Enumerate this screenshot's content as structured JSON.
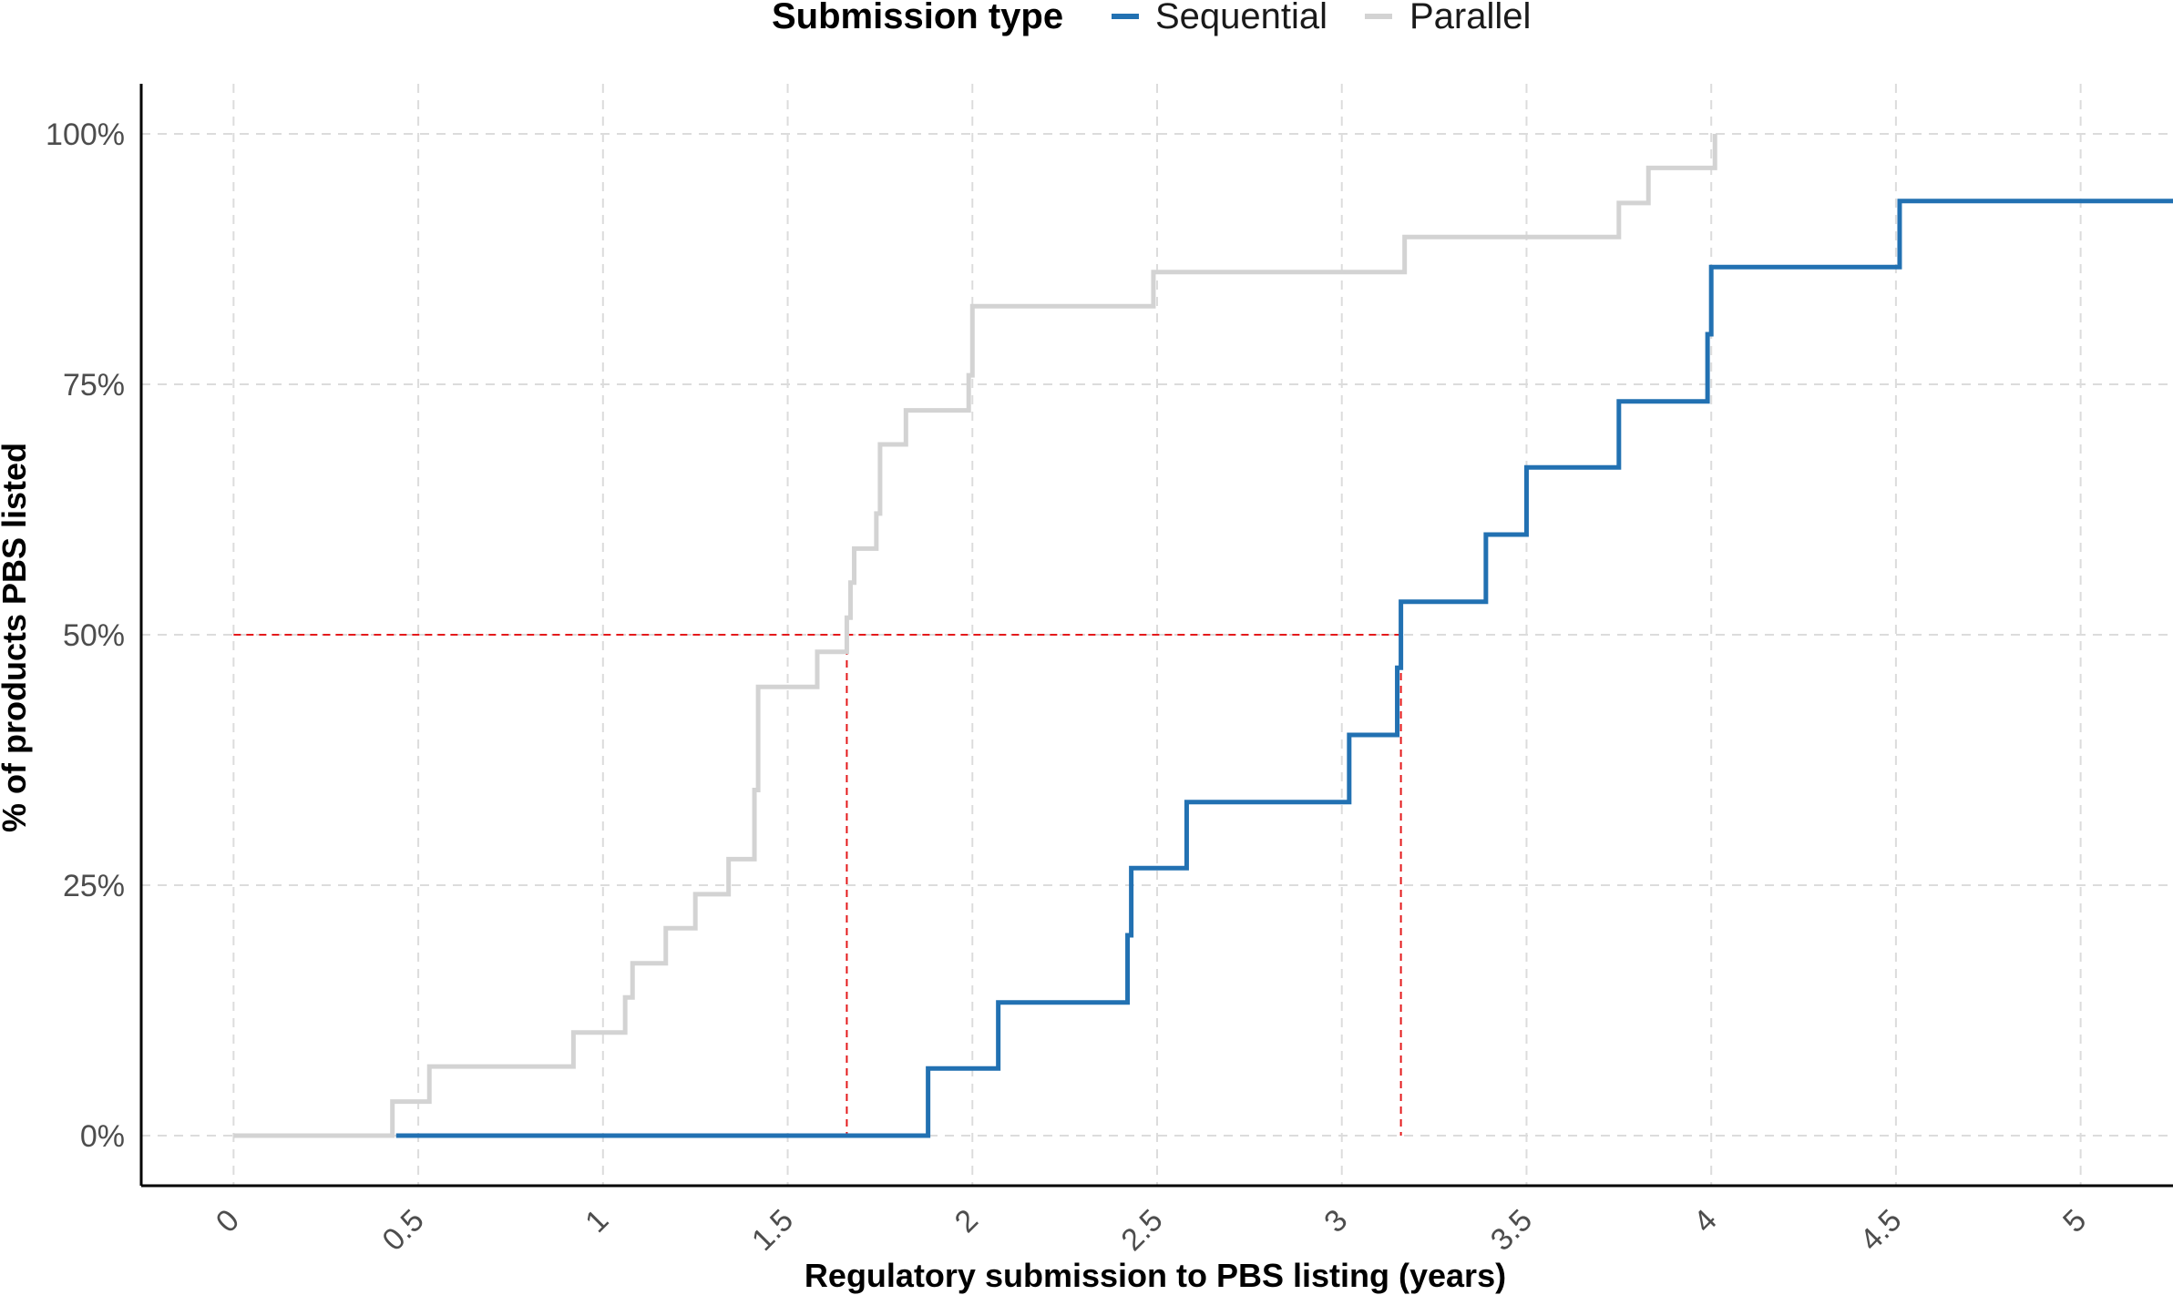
{
  "chart_data": {
    "type": "line",
    "step": true,
    "xlabel": "Regulatory submission to PBS listing (years)",
    "ylabel": "% of products PBS listed",
    "xlim": [
      -0.25,
      5.25
    ],
    "ylim": [
      -0.05,
      1.05
    ],
    "x_ticks": [
      0,
      0.5,
      1,
      1.5,
      2,
      2.5,
      3,
      3.5,
      4,
      4.5,
      5
    ],
    "x_tick_labels": [
      "0",
      "0.5",
      "1",
      "1.5",
      "2",
      "2.5",
      "3",
      "3.5",
      "4",
      "4.5",
      "5"
    ],
    "y_ticks": [
      0,
      0.25,
      0.5,
      0.75,
      1
    ],
    "y_tick_labels": [
      "0%",
      "25%",
      "50%",
      "75%",
      "100%"
    ],
    "grid": true,
    "legend": {
      "title": "Submission type",
      "position": "top"
    },
    "series": [
      {
        "name": "Sequential",
        "color": "#2271b2",
        "x": [
          0.44,
          1.88,
          2.07,
          2.42,
          2.43,
          2.58,
          3.02,
          3.15,
          3.16,
          3.39,
          3.5,
          3.75,
          3.99,
          4.0,
          4.51,
          5.25
        ],
        "y": [
          0,
          0.067,
          0.133,
          0.2,
          0.267,
          0.333,
          0.4,
          0.467,
          0.533,
          0.6,
          0.667,
          0.733,
          0.8,
          0.867,
          0.933,
          0.933
        ]
      },
      {
        "name": "Parallel",
        "color": "#d3d3d3",
        "x": [
          0,
          0.43,
          0.53,
          0.92,
          1.06,
          1.08,
          1.17,
          1.25,
          1.34,
          1.41,
          1.42,
          1.58,
          1.66,
          1.67,
          1.68,
          1.74,
          1.75,
          1.82,
          1.99,
          2.0,
          2.49,
          3.17,
          3.75,
          3.83,
          4.0,
          4.01
        ],
        "y": [
          0,
          0.034,
          0.069,
          0.103,
          0.138,
          0.172,
          0.207,
          0.241,
          0.276,
          0.345,
          0.448,
          0.483,
          0.517,
          0.552,
          0.586,
          0.621,
          0.69,
          0.724,
          0.759,
          0.828,
          0.862,
          0.897,
          0.931,
          0.966,
          0.966,
          1.0
        ]
      }
    ],
    "reference_lines": {
      "color": "#e41a1c",
      "y": 0.5,
      "x_medians": [
        1.66,
        3.16
      ]
    }
  }
}
